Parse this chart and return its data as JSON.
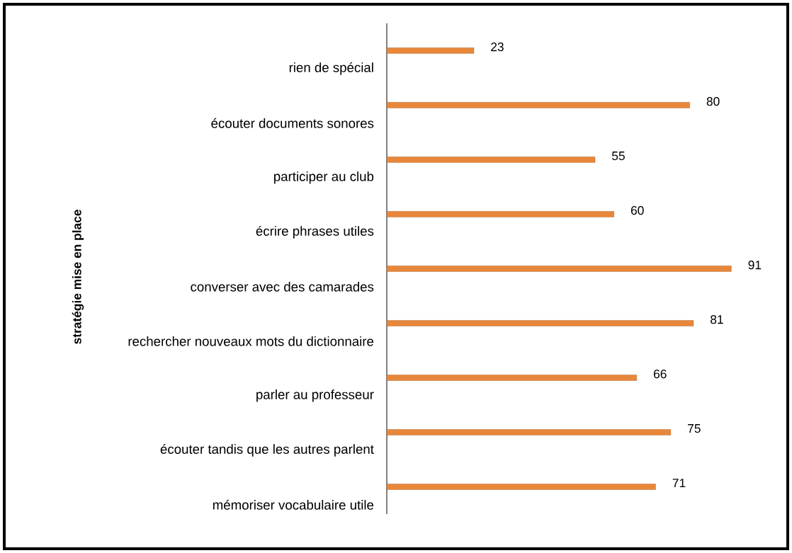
{
  "chart_data": {
    "type": "bar",
    "orientation": "horizontal",
    "ylabel": "stratégie mise en place",
    "categories": [
      "rien de spécial",
      "écouter documents sonores",
      "participer au club",
      "écrire phrases utiles",
      "converser avec des camarades",
      "rechercher nouveaux mots du dictionnaire",
      "parler au professeur",
      "écouter tandis que les autres parlent",
      "mémoriser vocabulaire utile"
    ],
    "values": [
      23,
      80,
      55,
      60,
      91,
      81,
      66,
      75,
      71
    ],
    "color": "#e8873a",
    "data_labels": true
  }
}
